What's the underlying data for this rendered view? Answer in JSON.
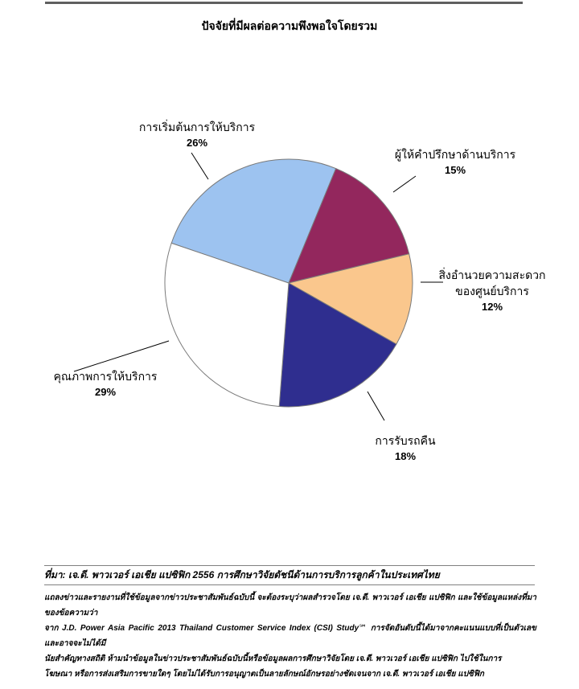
{
  "page": {
    "title": "ปัจจัยที่มีผลต่อความพึงพอใจโดยรวม"
  },
  "chart_data": {
    "type": "pie",
    "title": "ปัจจัยที่มีผลต่อความพึงพอใจโดยรวม",
    "categories": [
      "การเริ่มต้นการให้บริการ",
      "ผู้ให้คำปรึกษาด้านบริการ",
      "สิ่งอำนวยความสะดวกของศูนย์บริการ",
      "การรับรถคืน",
      "คุณภาพการให้บริการ"
    ],
    "values": [
      26,
      15,
      12,
      18,
      29
    ],
    "unit": "%",
    "colors": [
      "#9DC3F0",
      "#93275D",
      "#FAC78D",
      "#2F2E8F",
      "#FFFFFF"
    ],
    "slice_border_color": "#7a7a7a",
    "leader_line_color": "#000000",
    "start_angle_deg": -71.2,
    "direction": "clockwise",
    "legend": "none",
    "labels_position": "outside"
  },
  "labels": {
    "start_of_service": {
      "text": "การเริ่มต้นการให้บริการ",
      "pct": "26%"
    },
    "service_advisor": {
      "text": "ผู้ให้คำปรึกษาด้านบริการ",
      "pct": "15%"
    },
    "facility": {
      "line1": "สิ่งอำนวยความสะดวก",
      "line2": "ของศูนย์บริการ",
      "pct": "12%"
    },
    "vehicle_pickup": {
      "text": "การรับรถคืน",
      "pct": "18%"
    },
    "service_quality": {
      "text": "คุณภาพการให้บริการ",
      "pct": "29%"
    }
  },
  "footer": {
    "source": "ที่มา: เจ.ดี. พาวเวอร์ เอเชีย แปซิฟิก 2556 การศึกษาวิจัยดัชนีด้านการบริการลูกค้าในประเทศไทย",
    "disclaimer_lines": [
      "แถลงข่าวและรายงานที่ใช้ข้อมูลจากข่าวประชาสัมพันธ์ฉบับนี้ จะต้องระบุว่าผลสำรวจโดย เจ.ดี. พาวเวอร์ เอเชีย แปซิฟิก และใช้ข้อมูลแหล่งที่มาของข้อความว่า",
      "จาก J.D. Power Asia Pacific 2013 Thailand Customer Service Index (CSI) Study℠ การจัดอันดับนี้ได้มาจากคะแนนแบบที่เป็นตัวเลข และอาจจะไม่ได้มี",
      "นัยสำคัญทางสถิติ  ห้ามนำข้อมูลในข่าวประชาสัมพันธ์ฉบับนี้หรือข้อมูลผลการศึกษาวิจัยโดย เจ.ดี. พาวเวอร์ เอเชีย แปซิฟิก ไปใช้ในการ",
      "โฆษณา หรือการส่งเสริมการขายใดๆ โดยไม่ได้รับการอนุญาตเป็นลายลักษณ์อักษรอย่างชัดเจนจาก เจ.ดี. พาวเวอร์ เอเชีย แปซิฟิก"
    ]
  }
}
